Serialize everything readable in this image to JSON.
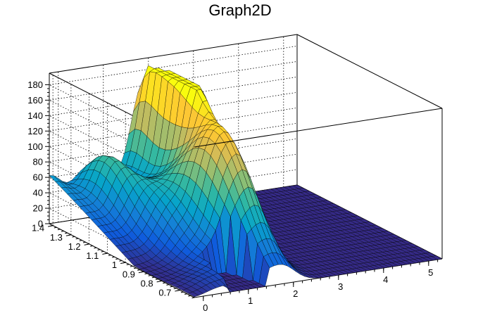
{
  "chart_data": {
    "type": "surface",
    "title": "Graph2D",
    "x_axis": {
      "range": [
        -0.2,
        5.3
      ],
      "ticks": [
        0,
        1,
        2,
        3,
        4,
        5
      ],
      "tick_labels": [
        "0",
        "1",
        "2",
        "3",
        "4",
        "5"
      ]
    },
    "y_axis": {
      "range": [
        0.62,
        1.42
      ],
      "ticks": [
        0.7,
        0.8,
        0.9,
        1.0,
        1.1,
        1.2,
        1.3,
        1.4
      ],
      "tick_labels": [
        "0.7",
        "0.8",
        "0.9",
        "1",
        "1.1",
        "1.2",
        "1.3",
        "1.4"
      ]
    },
    "z_axis": {
      "range": [
        0,
        195
      ],
      "ticks": [
        0,
        20,
        40,
        60,
        80,
        100,
        120,
        140,
        160,
        180
      ],
      "tick_labels": [
        "0",
        "20",
        "40",
        "60",
        "80",
        "100",
        "120",
        "140",
        "160",
        "180"
      ]
    },
    "grid": true,
    "colormap": [
      "#352a87",
      "#0f5cdd",
      "#1481d6",
      "#06a4ca",
      "#2eb7a4",
      "#87bf77",
      "#d1bb59",
      "#fec832",
      "#f9fb0e"
    ],
    "surface_features": [
      {
        "description": "ridge along far edge at low x",
        "x": 0.0,
        "y": 1.4,
        "z": 88
      },
      {
        "description": "local peak at low x",
        "x": 0.8,
        "y": 1.3,
        "z": 93
      },
      {
        "description": "dip",
        "x": 0.7,
        "y": 0.95,
        "z": 45
      },
      {
        "description": "mid peak",
        "x": 1.6,
        "y": 0.9,
        "z": 150
      },
      {
        "description": "gap with zero values",
        "x": 1.0,
        "y": 0.7,
        "z": 0
      },
      {
        "description": "main peak",
        "x": 1.9,
        "y": 1.25,
        "z": 175
      },
      {
        "description": "flat plane beyond x = 2.5",
        "x": 4.0,
        "y": 1.0,
        "z": 0
      }
    ]
  }
}
